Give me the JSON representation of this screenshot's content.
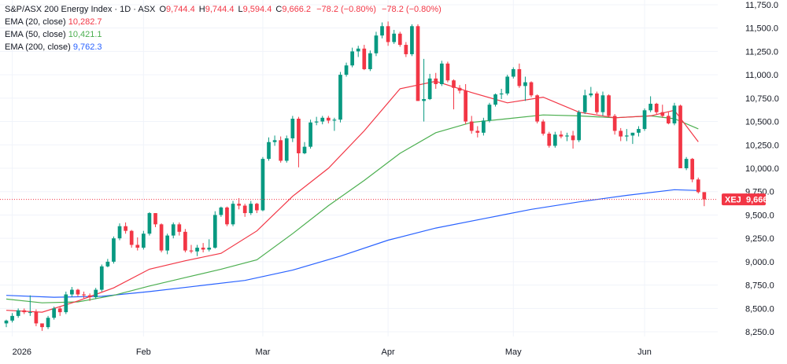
{
  "legend": {
    "symbol": "S&P/ASX 200 Energy Index · 1D · ASX",
    "ohlc": {
      "o_label": "O",
      "o": "9,744.4",
      "h_label": "H",
      "h": "9,744.4",
      "l_label": "L",
      "l": "9,594.4",
      "c_label": "C",
      "c": "9,666.2",
      "change": "−78.2 (−0.80%)",
      "change2": "−78.2 (−0.80%)"
    },
    "ema20_label": "EMA (20, close)",
    "ema20_value": "10,282.7",
    "ema50_label": "EMA (50, close)",
    "ema50_value": "10,421.1",
    "ema200_label": "EMA (200, close)",
    "ema200_value": "9,762.3"
  },
  "price_tag": {
    "symbol": "XEJ",
    "value": "9,666.2"
  },
  "colors": {
    "up": "#089981",
    "down": "#f23645",
    "ema20": "#f23645",
    "ema50": "#4caf50",
    "ema200": "#2962ff",
    "grid": "#f0f3fa"
  },
  "chart_data": {
    "type": "candlestick",
    "ylim": [
      8200,
      11800
    ],
    "yticks": [
      8250,
      8500,
      8750,
      9000,
      9250,
      9500,
      9750,
      10000,
      10250,
      10500,
      10750,
      11000,
      11250,
      11500,
      11750
    ],
    "ytick_labels": [
      "8,250.0",
      "8,500.0",
      "8,750.0",
      "9,000.0",
      "9,250.0",
      "9,500.0",
      "9,750.0",
      "10,000.0",
      "10,250.0",
      "10,500.0",
      "10,750.0",
      "11,000.0",
      "11,250.0",
      "11,500.0",
      "11,750.0"
    ],
    "xticks": [
      {
        "label": "2026",
        "index": 1
      },
      {
        "label": "Feb",
        "index": 23
      },
      {
        "label": "Mar",
        "index": 43
      },
      {
        "label": "Apr",
        "index": 64
      },
      {
        "label": "May",
        "index": 85
      },
      {
        "label": "Jun",
        "index": 107
      }
    ],
    "candles": [
      [
        8340,
        8380,
        8300,
        8370
      ],
      [
        8370,
        8450,
        8350,
        8420
      ],
      [
        8420,
        8500,
        8400,
        8480
      ],
      [
        8480,
        8500,
        8440,
        8460
      ],
      [
        8460,
        8640,
        8420,
        8460
      ],
      [
        8460,
        8490,
        8310,
        8340
      ],
      [
        8340,
        8320,
        8260,
        8300
      ],
      [
        8300,
        8420,
        8280,
        8400
      ],
      [
        8400,
        8520,
        8380,
        8500
      ],
      [
        8500,
        8520,
        8420,
        8460
      ],
      [
        8460,
        8680,
        8440,
        8650
      ],
      [
        8650,
        8730,
        8620,
        8700
      ],
      [
        8700,
        8710,
        8630,
        8650
      ],
      [
        8650,
        8680,
        8610,
        8640
      ],
      [
        8640,
        8660,
        8580,
        8620
      ],
      [
        8620,
        8720,
        8600,
        8700
      ],
      [
        8700,
        8970,
        8680,
        8950
      ],
      [
        8950,
        9030,
        8940,
        9000
      ],
      [
        9000,
        9270,
        8980,
        9250
      ],
      [
        9250,
        9410,
        9230,
        9380
      ],
      [
        9380,
        9420,
        9300,
        9330
      ],
      [
        9330,
        9340,
        9150,
        9180
      ],
      [
        9180,
        9260,
        9120,
        9150
      ],
      [
        9150,
        9330,
        9130,
        9300
      ],
      [
        9300,
        9530,
        9280,
        9520
      ],
      [
        9520,
        9520,
        9370,
        9400
      ],
      [
        9400,
        9410,
        9100,
        9120
      ],
      [
        9120,
        9300,
        9080,
        9280
      ],
      [
        9280,
        9420,
        9250,
        9400
      ],
      [
        9400,
        9420,
        9280,
        9320
      ],
      [
        9320,
        9350,
        9100,
        9120
      ],
      [
        9120,
        9180,
        9090,
        9110
      ],
      [
        9110,
        9180,
        9060,
        9150
      ],
      [
        9150,
        9200,
        9100,
        9130
      ],
      [
        9130,
        9240,
        9110,
        9150
      ],
      [
        9150,
        9540,
        9140,
        9500
      ],
      [
        9500,
        9590,
        9480,
        9580
      ],
      [
        9580,
        9590,
        9380,
        9400
      ],
      [
        9400,
        9650,
        9380,
        9620
      ],
      [
        9620,
        9680,
        9560,
        9600
      ],
      [
        9600,
        9620,
        9480,
        9520
      ],
      [
        9520,
        9650,
        9500,
        9620
      ],
      [
        9620,
        9630,
        9520,
        9550
      ],
      [
        9550,
        10120,
        9540,
        10100
      ],
      [
        10100,
        10330,
        10080,
        10280
      ],
      [
        10280,
        10350,
        10240,
        10300
      ],
      [
        10300,
        10340,
        10060,
        10080
      ],
      [
        10080,
        10350,
        10060,
        10320
      ],
      [
        10320,
        10560,
        10280,
        10530
      ],
      [
        10530,
        10550,
        10010,
        10160
      ],
      [
        10160,
        10280,
        10150,
        10230
      ],
      [
        10230,
        10520,
        10210,
        10490
      ],
      [
        10490,
        10550,
        10460,
        10500
      ],
      [
        10500,
        10560,
        10470,
        10540
      ],
      [
        10540,
        10560,
        10480,
        10510
      ],
      [
        10510,
        10540,
        10400,
        10520
      ],
      [
        10520,
        11030,
        10490,
        11000
      ],
      [
        11000,
        11130,
        10980,
        11100
      ],
      [
        11100,
        11290,
        11080,
        11250
      ],
      [
        11250,
        11310,
        11190,
        11280
      ],
      [
        11280,
        11320,
        11050,
        11060
      ],
      [
        11060,
        11260,
        11040,
        11230
      ],
      [
        11230,
        11460,
        11200,
        11420
      ],
      [
        11420,
        11560,
        11390,
        11520
      ],
      [
        11520,
        11570,
        11310,
        11350
      ],
      [
        11350,
        11480,
        11330,
        11440
      ],
      [
        11440,
        11460,
        11300,
        11320
      ],
      [
        11320,
        11350,
        11190,
        11220
      ],
      [
        11220,
        11540,
        11200,
        11520
      ],
      [
        11520,
        11540,
        10720,
        10720
      ],
      [
        10720,
        11170,
        10500,
        10740
      ],
      [
        10740,
        11010,
        10730,
        10960
      ],
      [
        10960,
        11020,
        10850,
        10900
      ],
      [
        10900,
        11150,
        10880,
        11120
      ],
      [
        11120,
        11140,
        10920,
        10940
      ],
      [
        10940,
        10950,
        10630,
        10860
      ],
      [
        10860,
        10890,
        10800,
        10830
      ],
      [
        10830,
        10900,
        10470,
        10500
      ],
      [
        10500,
        10560,
        10370,
        10400
      ],
      [
        10400,
        10450,
        10330,
        10380
      ],
      [
        10380,
        10540,
        10350,
        10510
      ],
      [
        10510,
        10700,
        10490,
        10680
      ],
      [
        10680,
        10800,
        10660,
        10790
      ],
      [
        10790,
        10850,
        10740,
        10800
      ],
      [
        10800,
        11000,
        10780,
        10980
      ],
      [
        10980,
        11080,
        10960,
        11060
      ],
      [
        11060,
        11120,
        10860,
        10880
      ],
      [
        10880,
        10980,
        10720,
        10920
      ],
      [
        10920,
        10930,
        10760,
        10780
      ],
      [
        10780,
        10790,
        10480,
        10500
      ],
      [
        10500,
        10520,
        10350,
        10370
      ],
      [
        10370,
        10390,
        10220,
        10240
      ],
      [
        10240,
        10390,
        10220,
        10360
      ],
      [
        10360,
        10400,
        10320,
        10340
      ],
      [
        10340,
        10380,
        10290,
        10350
      ],
      [
        10350,
        10400,
        10210,
        10300
      ],
      [
        10300,
        10620,
        10280,
        10600
      ],
      [
        10600,
        10840,
        10580,
        10780
      ],
      [
        10780,
        10870,
        10760,
        10800
      ],
      [
        10800,
        10820,
        10580,
        10600
      ],
      [
        10600,
        10820,
        10560,
        10780
      ],
      [
        10780,
        10790,
        10550,
        10560
      ],
      [
        10560,
        10580,
        10360,
        10400
      ],
      [
        10400,
        10430,
        10290,
        10340
      ],
      [
        10340,
        10420,
        10290,
        10350
      ],
      [
        10350,
        10380,
        10260,
        10380
      ],
      [
        10380,
        10450,
        10340,
        10420
      ],
      [
        10420,
        10640,
        10400,
        10620
      ],
      [
        10620,
        10770,
        10600,
        10690
      ],
      [
        10690,
        10700,
        10580,
        10600
      ],
      [
        10600,
        10680,
        10540,
        10560
      ],
      [
        10560,
        10600,
        10470,
        10480
      ],
      [
        10480,
        10700,
        10460,
        10670
      ],
      [
        10670,
        10680,
        10000,
        10000
      ],
      [
        10000,
        10120,
        9980,
        10100
      ],
      [
        10100,
        10110,
        9850,
        9880
      ],
      [
        9880,
        9900,
        9730,
        9744.4
      ],
      [
        9744.4,
        9744.4,
        9594.4,
        9666.2
      ]
    ],
    "ema20": [
      [
        0,
        8480
      ],
      [
        6,
        8460
      ],
      [
        12,
        8580
      ],
      [
        18,
        8720
      ],
      [
        24,
        8920
      ],
      [
        30,
        9010
      ],
      [
        36,
        9090
      ],
      [
        42,
        9330
      ],
      [
        48,
        9700
      ],
      [
        54,
        10000
      ],
      [
        60,
        10400
      ],
      [
        66,
        10850
      ],
      [
        72,
        10930
      ],
      [
        78,
        10810
      ],
      [
        84,
        10700
      ],
      [
        90,
        10760
      ],
      [
        96,
        10600
      ],
      [
        102,
        10540
      ],
      [
        108,
        10560
      ],
      [
        112,
        10620
      ],
      [
        116,
        10282.7
      ]
    ],
    "ema50": [
      [
        0,
        8600
      ],
      [
        6,
        8560
      ],
      [
        12,
        8570
      ],
      [
        18,
        8640
      ],
      [
        24,
        8740
      ],
      [
        30,
        8830
      ],
      [
        36,
        8920
      ],
      [
        42,
        9020
      ],
      [
        48,
        9300
      ],
      [
        54,
        9600
      ],
      [
        60,
        9870
      ],
      [
        66,
        10160
      ],
      [
        72,
        10380
      ],
      [
        78,
        10490
      ],
      [
        84,
        10530
      ],
      [
        90,
        10570
      ],
      [
        96,
        10560
      ],
      [
        102,
        10540
      ],
      [
        108,
        10560
      ],
      [
        112,
        10530
      ],
      [
        116,
        10421.1
      ]
    ],
    "ema200": [
      [
        0,
        8640
      ],
      [
        8,
        8620
      ],
      [
        16,
        8630
      ],
      [
        24,
        8680
      ],
      [
        32,
        8740
      ],
      [
        40,
        8800
      ],
      [
        48,
        8910
      ],
      [
        56,
        9060
      ],
      [
        64,
        9230
      ],
      [
        72,
        9360
      ],
      [
        80,
        9460
      ],
      [
        88,
        9560
      ],
      [
        96,
        9640
      ],
      [
        104,
        9710
      ],
      [
        112,
        9770
      ],
      [
        116,
        9762.3
      ]
    ]
  }
}
